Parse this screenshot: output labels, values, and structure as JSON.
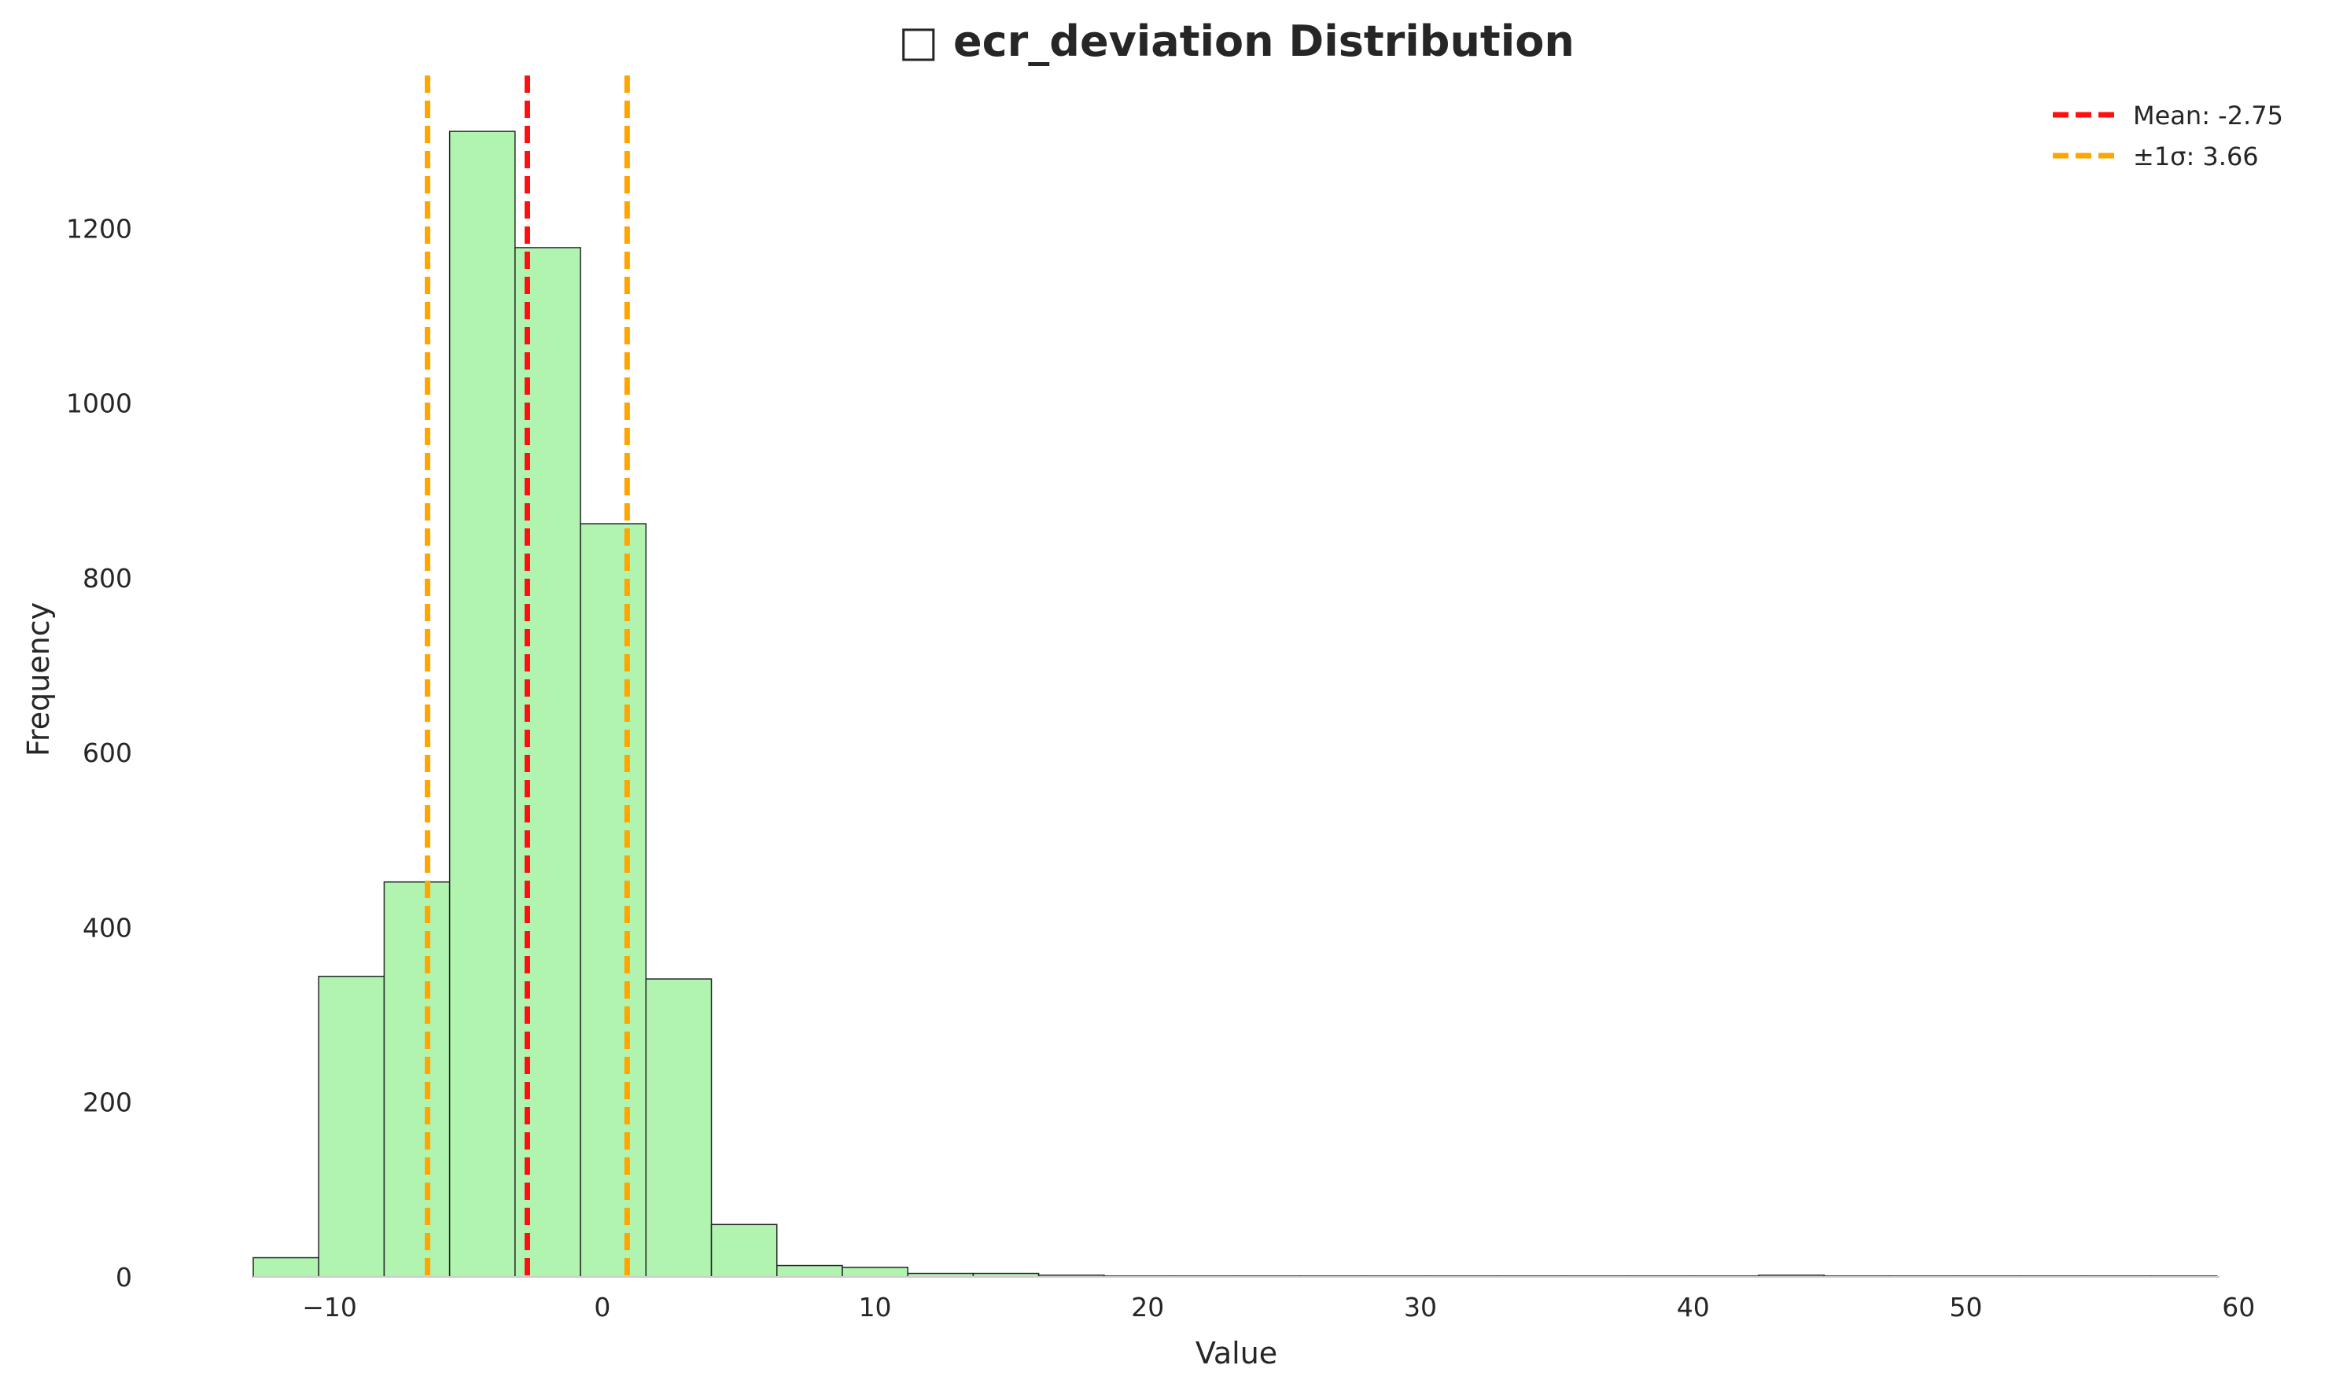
{
  "chart_data": {
    "type": "bar",
    "title": "□ ecr_deviation Distribution",
    "xlabel": "Value",
    "ylabel": "Frequency",
    "xlim": [
      -12.8,
      59.3
    ],
    "ylim": [
      0,
      1375
    ],
    "xticks": [
      -10,
      0,
      10,
      20,
      30,
      40,
      50,
      60
    ],
    "xtick_labels": [
      "−10",
      "0",
      "10",
      "20",
      "30",
      "40",
      "50",
      "60"
    ],
    "yticks": [
      0,
      200,
      400,
      600,
      800,
      1000,
      1200
    ],
    "yticks_labels": [
      "0",
      "200",
      "400",
      "600",
      "800",
      "1000",
      "1200"
    ],
    "grid": false,
    "legend_position": "top-right",
    "bins": {
      "start": -12.8,
      "width": 2.4,
      "counts": [
        22,
        344,
        452,
        1311,
        1178,
        862,
        341,
        60,
        13,
        11,
        4,
        4,
        2,
        1,
        1,
        1,
        1,
        1,
        1,
        1,
        1,
        1,
        1,
        2,
        1,
        1,
        1,
        1,
        1,
        1
      ]
    },
    "colors": {
      "bar_fill": "#b0f4b0",
      "bar_edge": "#262626",
      "mean_line": "#ff1010",
      "sigma_line": "#ffa500"
    },
    "reference_lines": [
      {
        "name": "mean",
        "value": -2.75,
        "legend": "Mean: -2.75",
        "color": "#ff1010"
      },
      {
        "name": "minus-sigma",
        "value": -6.41,
        "legend": "",
        "color": "#ffa500"
      },
      {
        "name": "plus-sigma",
        "value": 0.91,
        "legend": "±1σ: 3.66",
        "color": "#ffa500"
      }
    ],
    "legend": [
      "Mean: -2.75",
      "±1σ: 3.66"
    ]
  }
}
